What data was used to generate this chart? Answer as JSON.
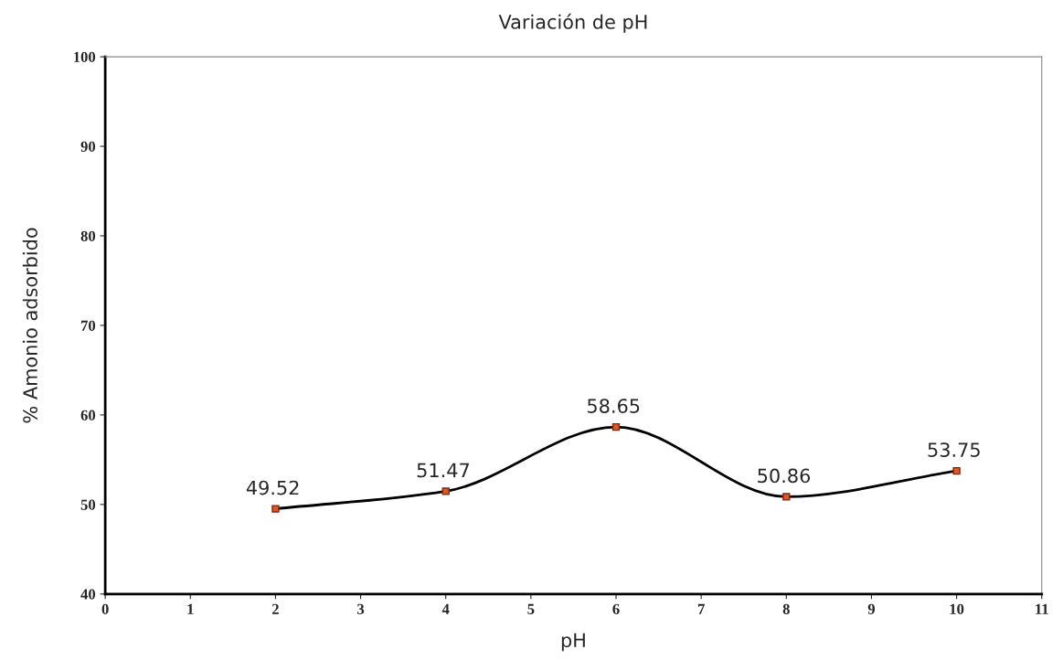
{
  "chart_data": {
    "type": "line",
    "title": "Variación de pH",
    "xlabel": "pH",
    "ylabel": "% Amonio adsorbido",
    "x": [
      2,
      4,
      6,
      8,
      10
    ],
    "series": [
      {
        "color": "#000000",
        "values": [
          49.52,
          51.47,
          58.65,
          50.86,
          53.75
        ]
      }
    ],
    "marker": "square",
    "line_style": "solid",
    "data_labels": true,
    "grid": false,
    "legend": false,
    "xlim": [
      0,
      11
    ],
    "xticks": [
      0,
      1,
      2,
      3,
      4,
      5,
      6,
      7,
      8,
      9,
      10,
      11
    ],
    "ylim": [
      40,
      100
    ],
    "yticks": [
      40,
      50,
      60,
      70,
      80,
      90,
      100
    ]
  }
}
